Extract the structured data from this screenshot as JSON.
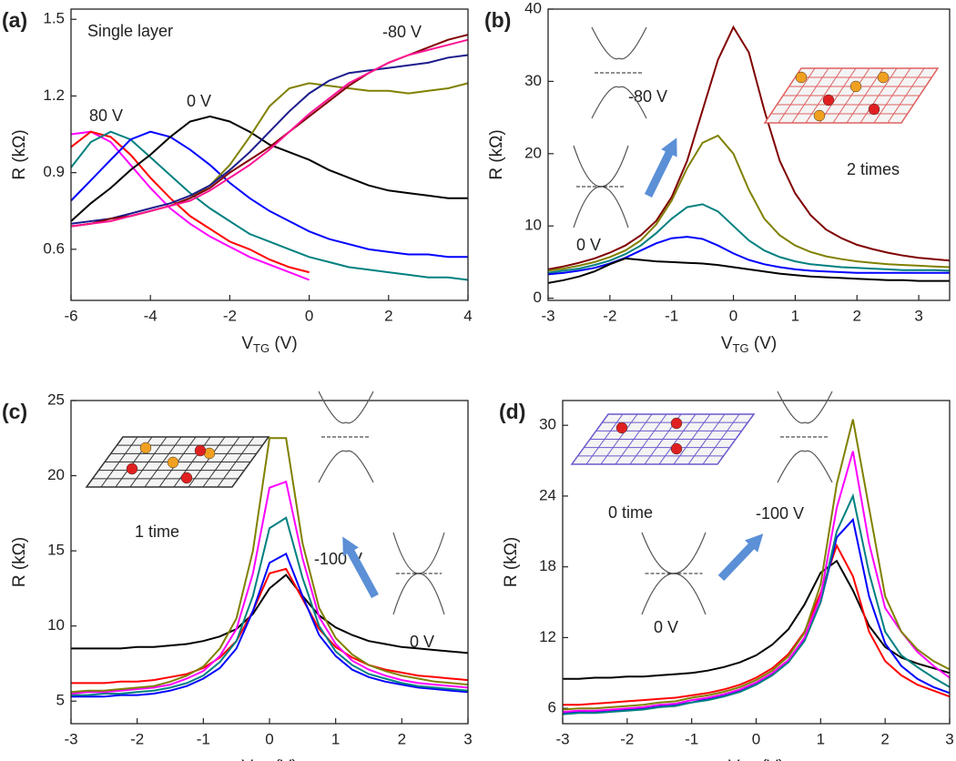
{
  "chart_data": [
    {
      "type": "line",
      "label": "(a)",
      "ylabel": "R (kΩ)",
      "xlabel": "V",
      "xlabel_sub": "TG",
      "xlabel_unit": " (V)",
      "annotations": [
        "Single layer",
        "-80 V",
        "80 V",
        "0 V"
      ],
      "xlim": [
        -6,
        4
      ],
      "xticks": [
        -6,
        -4,
        -2,
        0,
        2,
        4
      ],
      "ylim": [
        0.4,
        1.54
      ],
      "yticks": [
        0.6,
        0.9,
        1.2,
        1.5
      ],
      "grid": false,
      "x": [
        -6,
        -5.5,
        -5,
        -4.5,
        -4,
        -3.5,
        -3,
        -2.5,
        -2,
        -1.5,
        -1,
        -0.5,
        0,
        0.5,
        1,
        1.5,
        2,
        2.5,
        3,
        3.5,
        4
      ],
      "series": [
        {
          "color": "#ff00ff",
          "values": [
            1.05,
            1.06,
            1.02,
            0.93,
            0.84,
            0.76,
            0.7,
            0.65,
            0.61,
            0.57,
            0.54,
            0.51,
            0.48,
            null,
            null,
            null,
            null,
            null,
            null,
            null,
            null
          ]
        },
        {
          "color": "#ff0000",
          "values": [
            1.0,
            1.06,
            1.04,
            0.97,
            0.88,
            0.8,
            0.73,
            0.68,
            0.63,
            0.6,
            0.56,
            0.53,
            0.51,
            null,
            null,
            null,
            null,
            null,
            null,
            null,
            null
          ]
        },
        {
          "color": "#008080",
          "values": [
            0.92,
            1.02,
            1.06,
            1.03,
            0.96,
            0.89,
            0.82,
            0.76,
            0.71,
            0.66,
            0.63,
            0.6,
            0.57,
            0.55,
            0.53,
            0.52,
            0.51,
            0.5,
            0.49,
            0.49,
            0.48
          ]
        },
        {
          "color": "#0000ff",
          "values": [
            0.79,
            0.87,
            0.95,
            1.03,
            1.06,
            1.04,
            0.99,
            0.93,
            0.86,
            0.8,
            0.75,
            0.71,
            0.67,
            0.64,
            0.62,
            0.6,
            0.59,
            0.58,
            0.58,
            0.57,
            0.57
          ]
        },
        {
          "color": "#000000",
          "values": [
            0.71,
            0.78,
            0.84,
            0.91,
            0.97,
            1.04,
            1.1,
            1.12,
            1.1,
            1.06,
            1.01,
            0.98,
            0.95,
            0.91,
            0.88,
            0.85,
            0.83,
            0.82,
            0.81,
            0.8,
            0.8
          ]
        },
        {
          "color": "#808000",
          "values": [
            0.69,
            0.7,
            0.72,
            0.73,
            0.75,
            0.77,
            0.8,
            0.85,
            0.93,
            1.04,
            1.16,
            1.23,
            1.25,
            1.24,
            1.23,
            1.22,
            1.22,
            1.21,
            1.22,
            1.23,
            1.25
          ]
        },
        {
          "color": "#1c1c8c",
          "values": [
            0.7,
            0.71,
            0.72,
            0.74,
            0.76,
            0.78,
            0.81,
            0.85,
            0.91,
            0.98,
            1.06,
            1.14,
            1.21,
            1.26,
            1.29,
            1.3,
            1.31,
            1.32,
            1.33,
            1.35,
            1.36
          ]
        },
        {
          "color": "#800000",
          "values": [
            0.69,
            0.7,
            0.72,
            0.73,
            0.75,
            0.77,
            0.8,
            0.84,
            0.9,
            0.95,
            1.0,
            1.06,
            1.12,
            1.18,
            1.24,
            1.29,
            1.33,
            1.36,
            1.39,
            1.42,
            1.44
          ]
        },
        {
          "color": "#ff1493",
          "values": [
            0.69,
            0.7,
            0.71,
            0.73,
            0.75,
            0.77,
            0.79,
            0.83,
            0.88,
            0.93,
            0.99,
            1.06,
            1.13,
            1.19,
            1.25,
            1.29,
            1.33,
            1.36,
            1.38,
            1.4,
            1.42
          ]
        }
      ]
    },
    {
      "type": "line",
      "label": "(b)",
      "ylabel": "R (kΩ)",
      "xlabel": "V",
      "xlabel_sub": "TG",
      "xlabel_unit": " (V)",
      "annotations": [
        "-80 V",
        "2 times",
        "0 V"
      ],
      "xlim": [
        -3,
        3.5
      ],
      "xticks": [
        -3,
        -2,
        -1,
        0,
        1,
        2,
        3
      ],
      "ylim": [
        -0.3,
        40
      ],
      "yticks": [
        0,
        10,
        20,
        30,
        40
      ],
      "grid": false,
      "x": [
        -3,
        -2.75,
        -2.5,
        -2.25,
        -2,
        -1.75,
        -1.5,
        -1.25,
        -1,
        -0.75,
        -0.5,
        -0.25,
        0,
        0.25,
        0.5,
        0.75,
        1,
        1.25,
        1.5,
        1.75,
        2,
        2.25,
        2.5,
        2.75,
        3,
        3.25,
        3.5
      ],
      "series": [
        {
          "color": "#800000",
          "values": [
            4.0,
            4.4,
            4.9,
            5.5,
            6.3,
            7.3,
            8.7,
            10.7,
            14,
            19,
            26,
            33,
            37.5,
            34,
            26,
            19,
            14.5,
            11.5,
            9.5,
            8.3,
            7.4,
            6.8,
            6.3,
            5.9,
            5.6,
            5.4,
            5.2
          ]
        },
        {
          "color": "#808000",
          "values": [
            3.8,
            4.1,
            4.5,
            5.0,
            5.7,
            6.6,
            8.0,
            10.2,
            13.5,
            18,
            21.5,
            22.5,
            20,
            15,
            11,
            8.7,
            7.3,
            6.4,
            5.8,
            5.4,
            5.1,
            4.9,
            4.7,
            4.6,
            4.5,
            4.4,
            4.3
          ]
        },
        {
          "color": "#008080",
          "values": [
            3.5,
            3.8,
            4.1,
            4.6,
            5.2,
            6.1,
            7.3,
            9.0,
            11,
            12.6,
            13,
            12,
            10,
            8,
            6.6,
            5.7,
            5.1,
            4.7,
            4.5,
            4.3,
            4.2,
            4.1,
            4.0,
            3.9,
            3.9,
            3.9,
            3.8
          ]
        },
        {
          "color": "#0000ff",
          "values": [
            3.3,
            3.5,
            3.8,
            4.2,
            4.8,
            5.6,
            6.6,
            7.6,
            8.3,
            8.5,
            8.2,
            7.3,
            6.2,
            5.3,
            4.7,
            4.3,
            4.0,
            3.8,
            3.7,
            3.6,
            3.5,
            3.5,
            3.5,
            3.5,
            3.5,
            3.5,
            3.5
          ]
        },
        {
          "color": "#000000",
          "values": [
            2.1,
            2.5,
            3.0,
            3.7,
            4.7,
            5.5,
            5.3,
            5.1,
            5.0,
            4.9,
            4.8,
            4.6,
            4.3,
            4.0,
            3.7,
            3.4,
            3.2,
            3.0,
            2.9,
            2.8,
            2.7,
            2.6,
            2.5,
            2.5,
            2.4,
            2.4,
            2.4
          ]
        }
      ]
    },
    {
      "type": "line",
      "label": "(c)",
      "ylabel": "R (kΩ)",
      "xlabel": "V",
      "xlabel_sub": "TG",
      "xlabel_unit": " (V)",
      "annotations": [
        "1 time",
        "-100 V",
        "0 V"
      ],
      "xlim": [
        -3,
        3
      ],
      "xticks": [
        -3,
        -2,
        -1,
        0,
        1,
        2,
        3
      ],
      "ylim": [
        3.5,
        25
      ],
      "yticks": [
        5,
        10,
        15,
        20,
        25
      ],
      "grid": false,
      "x": [
        -3,
        -2.75,
        -2.5,
        -2.25,
        -2,
        -1.75,
        -1.5,
        -1.25,
        -1,
        -0.75,
        -0.5,
        -0.25,
        0,
        0.25,
        0.5,
        0.75,
        1,
        1.25,
        1.5,
        1.75,
        2,
        2.25,
        2.5,
        2.75,
        3
      ],
      "series": [
        {
          "color": "#000000",
          "values": [
            8.5,
            8.5,
            8.5,
            8.5,
            8.6,
            8.6,
            8.7,
            8.8,
            9.0,
            9.3,
            9.8,
            10.8,
            12.5,
            13.4,
            12.0,
            10.7,
            9.9,
            9.4,
            9.0,
            8.8,
            8.6,
            8.5,
            8.4,
            8.3,
            8.2
          ]
        },
        {
          "color": "#ff0000",
          "values": [
            6.2,
            6.2,
            6.2,
            6.3,
            6.3,
            6.4,
            6.6,
            6.8,
            7.2,
            7.9,
            9.0,
            11.0,
            13.5,
            13.8,
            11.8,
            9.8,
            8.6,
            7.9,
            7.4,
            7.1,
            6.9,
            6.7,
            6.6,
            6.5,
            6.4
          ]
        },
        {
          "color": "#0000ff",
          "values": [
            5.3,
            5.3,
            5.3,
            5.4,
            5.4,
            5.5,
            5.7,
            6.0,
            6.5,
            7.2,
            8.5,
            11,
            14.2,
            14.8,
            12,
            9.4,
            8.0,
            7.1,
            6.6,
            6.3,
            6.1,
            5.9,
            5.8,
            5.7,
            5.6
          ]
        },
        {
          "color": "#008080",
          "values": [
            5.4,
            5.4,
            5.5,
            5.5,
            5.6,
            5.7,
            5.9,
            6.2,
            6.7,
            7.6,
            9.0,
            12,
            16.5,
            17.2,
            13.2,
            10,
            8.3,
            7.4,
            6.8,
            6.5,
            6.2,
            6.0,
            5.9,
            5.8,
            5.7
          ]
        },
        {
          "color": "#ff00ff",
          "values": [
            5.5,
            5.6,
            5.6,
            5.7,
            5.8,
            5.9,
            6.1,
            6.5,
            7.0,
            8.0,
            9.8,
            13.5,
            19.2,
            19.6,
            14.5,
            10.6,
            8.8,
            7.7,
            7.1,
            6.7,
            6.4,
            6.2,
            6.1,
            6.0,
            5.9
          ]
        },
        {
          "color": "#808000",
          "values": [
            5.6,
            5.7,
            5.7,
            5.8,
            5.9,
            6.0,
            6.3,
            6.7,
            7.3,
            8.5,
            10.5,
            15,
            22.5,
            22.5,
            15.5,
            11.2,
            9.2,
            8.1,
            7.4,
            7.0,
            6.7,
            6.5,
            6.3,
            6.2,
            6.1
          ]
        }
      ]
    },
    {
      "type": "line",
      "label": "(d)",
      "ylabel": "R (kΩ)",
      "xlabel": "V",
      "xlabel_sub": "TG",
      "xlabel_unit": " (V)",
      "annotations": [
        "0 time",
        "-100 V",
        "0 V"
      ],
      "xlim": [
        -3,
        3
      ],
      "xticks": [
        -3,
        -2,
        -1,
        0,
        1,
        2,
        3
      ],
      "ylim": [
        4.7,
        32.1
      ],
      "yticks": [
        6,
        12,
        18,
        24,
        30
      ],
      "grid": false,
      "x": [
        -3,
        -2.75,
        -2.5,
        -2.25,
        -2,
        -1.75,
        -1.5,
        -1.25,
        -1,
        -0.75,
        -0.5,
        -0.25,
        0,
        0.25,
        0.5,
        0.75,
        1,
        1.25,
        1.5,
        1.75,
        2,
        2.25,
        2.5,
        2.75,
        3
      ],
      "series": [
        {
          "color": "#000000",
          "values": [
            8.5,
            8.5,
            8.6,
            8.6,
            8.7,
            8.7,
            8.8,
            8.9,
            9.0,
            9.2,
            9.5,
            9.9,
            10.5,
            11.4,
            12.7,
            14.8,
            17.5,
            18.5,
            16,
            13,
            11.2,
            10.3,
            9.8,
            9.4,
            9.0
          ]
        },
        {
          "color": "#ff0000",
          "values": [
            6.3,
            6.3,
            6.4,
            6.5,
            6.6,
            6.7,
            6.8,
            6.9,
            7.1,
            7.3,
            7.6,
            8.0,
            8.6,
            9.4,
            10.6,
            12.5,
            15.8,
            19.8,
            17.2,
            12.5,
            10,
            8.8,
            8.0,
            7.5,
            7.0
          ]
        },
        {
          "color": "#0000ff",
          "values": [
            5.6,
            5.7,
            5.7,
            5.8,
            5.9,
            6.0,
            6.2,
            6.3,
            6.5,
            6.8,
            7.1,
            7.5,
            8.1,
            8.9,
            10.0,
            11.8,
            15,
            20.5,
            22,
            15.5,
            11.5,
            9.6,
            8.5,
            7.8,
            7.3
          ]
        },
        {
          "color": "#008080",
          "values": [
            5.5,
            5.6,
            5.6,
            5.7,
            5.8,
            5.9,
            6.1,
            6.2,
            6.5,
            6.7,
            7.0,
            7.4,
            8.0,
            8.8,
            9.9,
            11.7,
            15,
            21,
            24,
            17.5,
            12.5,
            10.5,
            9.5,
            8.6,
            7.8
          ]
        },
        {
          "color": "#ff00ff",
          "values": [
            5.7,
            5.8,
            5.8,
            5.9,
            6.0,
            6.1,
            6.3,
            6.4,
            6.7,
            6.9,
            7.2,
            7.6,
            8.2,
            9.0,
            10.1,
            12,
            15.5,
            23,
            27.8,
            20,
            14.5,
            12.5,
            10.8,
            9.6,
            8.6
          ]
        },
        {
          "color": "#808000",
          "values": [
            5.9,
            6.0,
            6.0,
            6.1,
            6.2,
            6.3,
            6.5,
            6.6,
            6.9,
            7.1,
            7.4,
            7.8,
            8.4,
            9.2,
            10.4,
            12.4,
            16.5,
            25,
            30.5,
            23,
            15.5,
            12.5,
            11,
            10,
            9.3
          ]
        }
      ]
    }
  ]
}
